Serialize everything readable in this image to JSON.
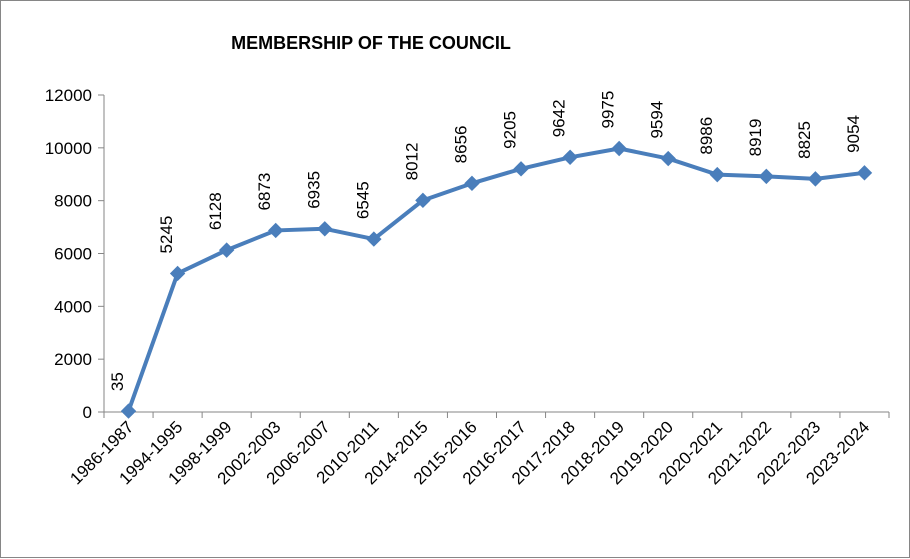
{
  "chart_data": {
    "type": "line",
    "title": "MEMBERSHIP OF THE COUNCIL",
    "xlabel": "",
    "ylabel": "",
    "categories": [
      "1986-1987",
      "1994-1995",
      "1998-1999",
      "2002-2003",
      "2006-2007",
      "2010-2011",
      "2014-2015",
      "2015-2016",
      "2016-2017",
      "2017-2018",
      "2018-2019",
      "2019-2020",
      "2020-2021",
      "2021-2022",
      "2022-2023",
      "2023-2024"
    ],
    "series": [
      {
        "values": [
          35,
          5245,
          6128,
          6873,
          6935,
          6545,
          8012,
          8656,
          9205,
          9642,
          9975,
          9594,
          8986,
          8919,
          8825,
          9054
        ]
      }
    ],
    "ylim": [
      0,
      12000
    ],
    "yticks": [
      0,
      2000,
      4000,
      6000,
      8000,
      10000,
      12000
    ],
    "grid": false,
    "legend": "none",
    "line_color": "#4a7ebb",
    "marker": "diamond",
    "data_labels": true
  }
}
